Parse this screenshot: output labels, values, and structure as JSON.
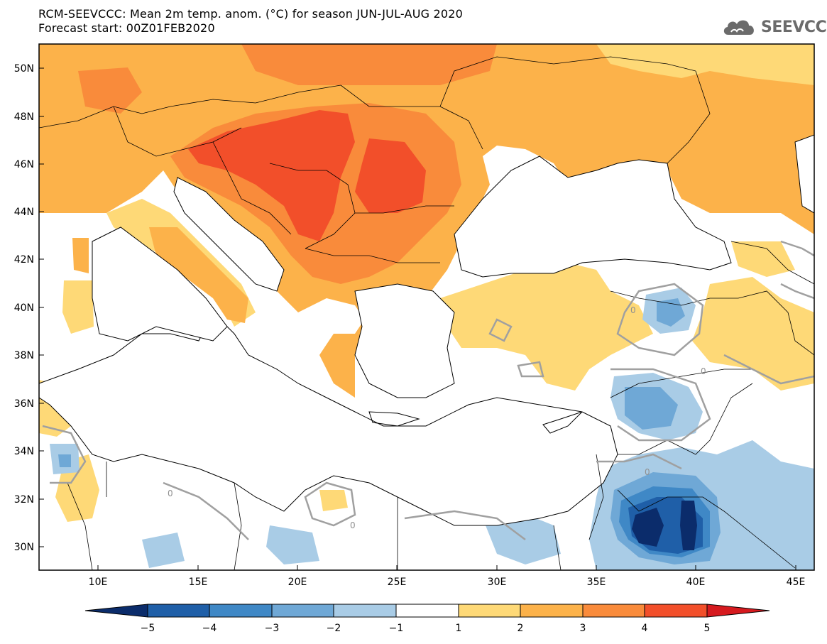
{
  "header": {
    "title_line1": "RCM-SEEVCCC: Mean 2m temp. anom. (°C) for season JUN-JUL-AUG 2020",
    "title_line2": "Forecast start: 00Z01FEB2020"
  },
  "logo": {
    "text": "SEEVCCC",
    "icon": "cloud-icon"
  },
  "map": {
    "lat_ticks": [
      "50N",
      "48N",
      "46N",
      "44N",
      "42N",
      "40N",
      "38N",
      "36N",
      "34N",
      "32N",
      "30N"
    ],
    "lon_ticks": [
      "10E",
      "15E",
      "20E",
      "25E",
      "30E",
      "35E",
      "40E",
      "45E"
    ],
    "contour_label": "0"
  },
  "colorbar": {
    "labels": [
      "−5",
      "−4",
      "−3",
      "−2",
      "−1",
      "1",
      "2",
      "3",
      "4",
      "5"
    ],
    "colors": [
      "#0b2c6b",
      "#1f5fa8",
      "#3f88c6",
      "#6fa8d6",
      "#a9cce6",
      "#ffffff",
      "#fed977",
      "#fcb24a",
      "#f98b3b",
      "#f24f2a",
      "#d61a1f"
    ]
  }
}
